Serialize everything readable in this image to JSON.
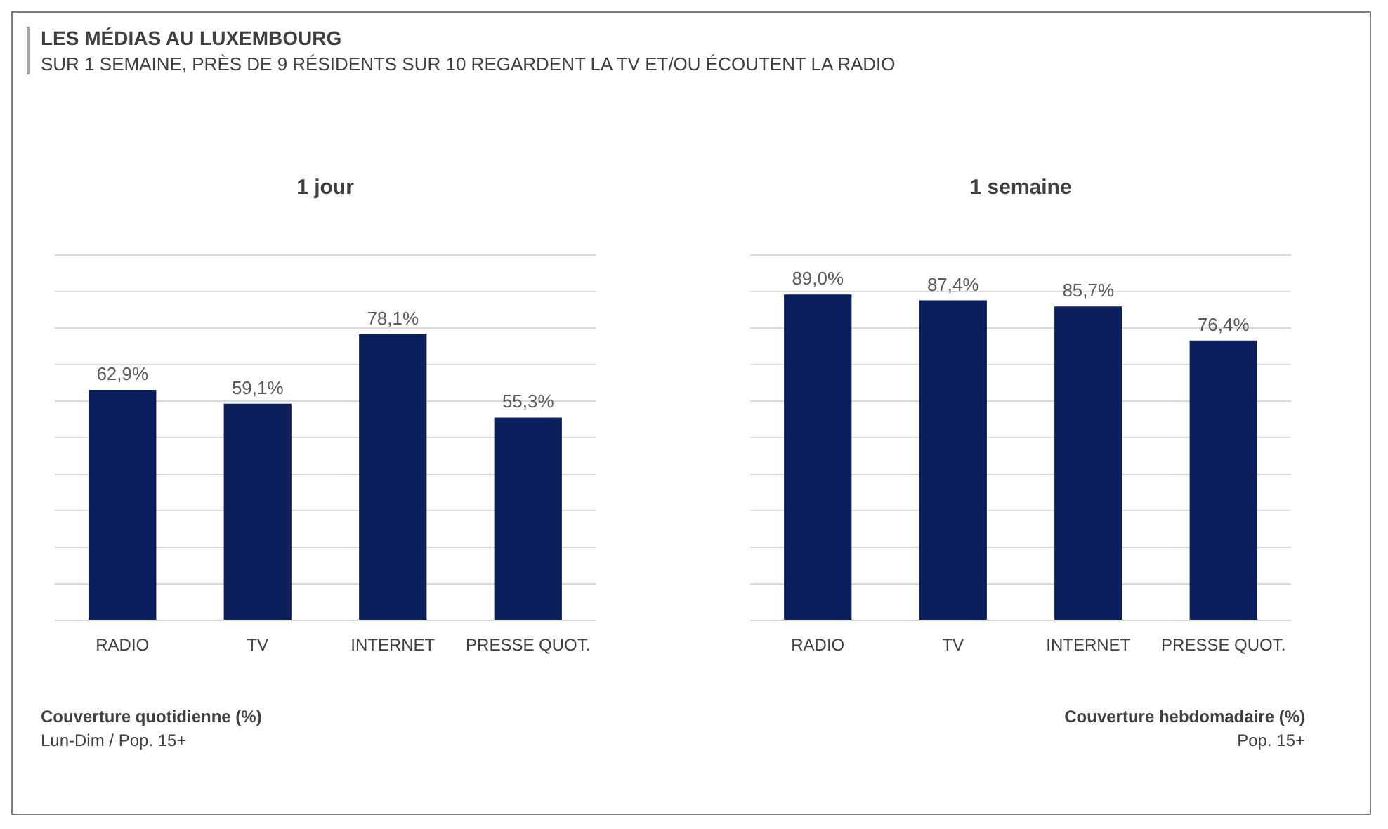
{
  "chart_data": [
    {
      "type": "bar",
      "title": "1 jour",
      "categories": [
        "RADIO",
        "TV",
        "INTERNET",
        "PRESSE QUOT."
      ],
      "values": [
        62.9,
        59.1,
        78.1,
        55.3
      ],
      "color": "#0b1f5c",
      "value_labels": [
        "62,9%",
        "59,1%",
        "78,1%",
        "55,3%"
      ],
      "ylim": [
        0,
        100
      ],
      "yticks": [
        0,
        10,
        20,
        30,
        40,
        50,
        60,
        70,
        80,
        90,
        100
      ],
      "grid": "y",
      "tick_labels": "x",
      "annotations": [
        "LES MÉDIAS AU LUXEMBOURG",
        "SUR 1 SEMAINE, PRÈS DE 9 RÉSIDENTS SUR 10 REGARDENT LA TV ET/OU ÉCOUTENT LA RADIO",
        "Couverture quotidienne (%)",
        "Lun-Dim / Pop. 15+"
      ]
    },
    {
      "type": "bar",
      "title": "1 semaine",
      "categories": [
        "RADIO",
        "TV",
        "INTERNET",
        "PRESSE QUOT."
      ],
      "values": [
        89.0,
        87.4,
        85.7,
        76.4
      ],
      "color": "#0b1f5c",
      "value_labels": [
        "89,0%",
        "87,4%",
        "85,7%",
        "76,4%"
      ],
      "ylim": [
        0,
        100
      ],
      "yticks": [
        0,
        10,
        20,
        30,
        40,
        50,
        60,
        70,
        80,
        90,
        100
      ],
      "grid": "y",
      "tick_labels": "x",
      "annotations": [
        "Couverture hebdomadaire (%)",
        "Pop. 15+"
      ]
    }
  ]
}
